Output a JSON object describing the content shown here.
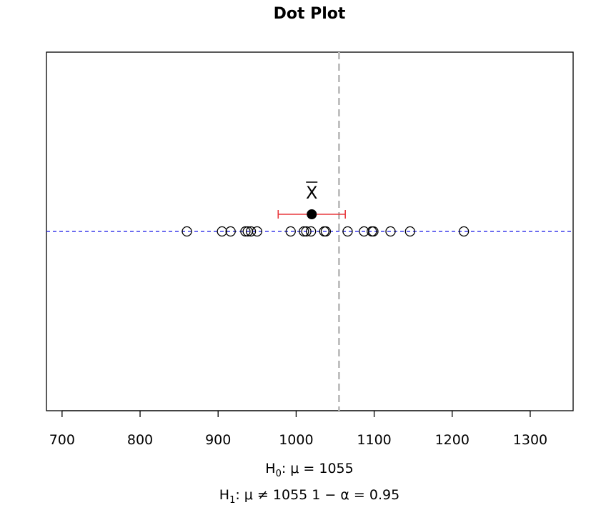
{
  "chart_data": {
    "type": "scatter",
    "title": "Dot Plot",
    "xlabel": "",
    "ylabel": "",
    "xlim": [
      680,
      1355
    ],
    "x_ticks": [
      700,
      800,
      900,
      1000,
      1100,
      1200,
      1300
    ],
    "tick_labels": [
      "700",
      "800",
      "900",
      "1000",
      "1100",
      "1200",
      "1300"
    ],
    "grid": false,
    "points": [
      860,
      905,
      916,
      935,
      938,
      942,
      950,
      993,
      1010,
      1013,
      1019,
      1036,
      1038,
      1066,
      1087,
      1097,
      1099,
      1121,
      1146,
      1215
    ],
    "sample_mean": 1020,
    "mean_label": "X",
    "confidence_interval": [
      977,
      1063
    ],
    "hypothesized_mean": 1055,
    "colors": {
      "points": "#000000",
      "mean_point": "#000000",
      "confidence_interval": "#e8383d",
      "hypothesis_line": "#bdbdbd",
      "baseline": "#1414e6"
    },
    "annotations": {
      "h0": {
        "label": "H",
        "sub": "0",
        "text": ":  μ = 1055"
      },
      "h1": {
        "label": "H",
        "sub": "1",
        "text": ":  μ ≠ 1055    1 − α = 0.95"
      }
    }
  }
}
